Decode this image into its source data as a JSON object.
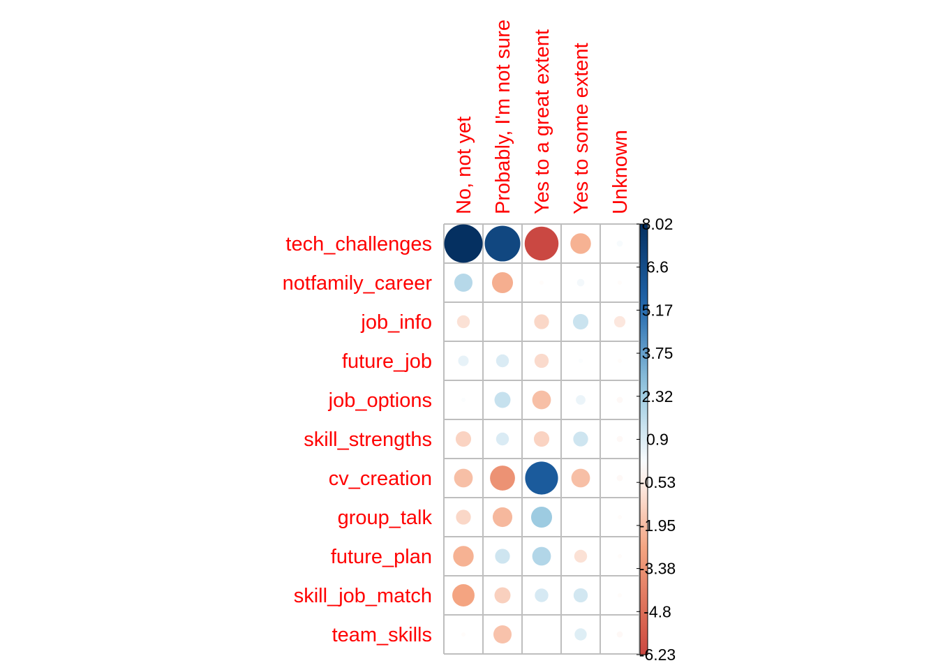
{
  "chart_data": {
    "type": "heatmap",
    "glyph": "circle",
    "columns": [
      "No, not yet",
      "Probably, I'm not sure",
      "Yes to a great extent",
      "Yes to some extent",
      "Unknown"
    ],
    "rows": [
      "tech_challenges",
      "notfamily_career",
      "job_info",
      "future_job",
      "job_options",
      "skill_strengths",
      "cv_creation",
      "group_talk",
      "future_plan",
      "skill_job_match",
      "team_skills"
    ],
    "values": [
      [
        8.02,
        6.9,
        -6.23,
        -2.3,
        0.2
      ],
      [
        1.8,
        -2.4,
        -0.1,
        0.3,
        -0.1
      ],
      [
        -0.9,
        0.0,
        -1.2,
        1.3,
        -0.7
      ],
      [
        0.6,
        0.9,
        -1.1,
        0.1,
        -0.1
      ],
      [
        0.1,
        1.4,
        -1.9,
        0.5,
        -0.2
      ],
      [
        -1.3,
        0.9,
        -1.3,
        1.2,
        -0.2
      ],
      [
        -1.9,
        -3.4,
        5.9,
        -1.9,
        -0.2
      ],
      [
        -1.2,
        -2.1,
        2.4,
        0.0,
        -0.1
      ],
      [
        -2.3,
        1.2,
        1.9,
        -0.9,
        -0.1
      ],
      [
        -2.7,
        -1.4,
        1.0,
        1.1,
        -0.1
      ],
      [
        -0.1,
        -1.8,
        0.0,
        0.8,
        -0.2
      ]
    ],
    "legend": {
      "ticks": [
        "8.02",
        "6.6",
        "5.17",
        "3.75",
        "2.32",
        "0.9",
        "-0.53",
        "-1.95",
        "-3.38",
        "-4.8",
        "-6.23"
      ],
      "min": -6.23,
      "max": 8.02,
      "placement": "right"
    },
    "colors": {
      "positive_strong": "#053061",
      "positive_mid": "#2166ac",
      "positive_light": "#92c5de",
      "neutral": "#ffffff",
      "negative_light": "#f4a582",
      "negative_mid": "#d6604d",
      "negative_strong": "#b2182b",
      "labels": "#ff0000",
      "grid": "#bebebe"
    }
  }
}
